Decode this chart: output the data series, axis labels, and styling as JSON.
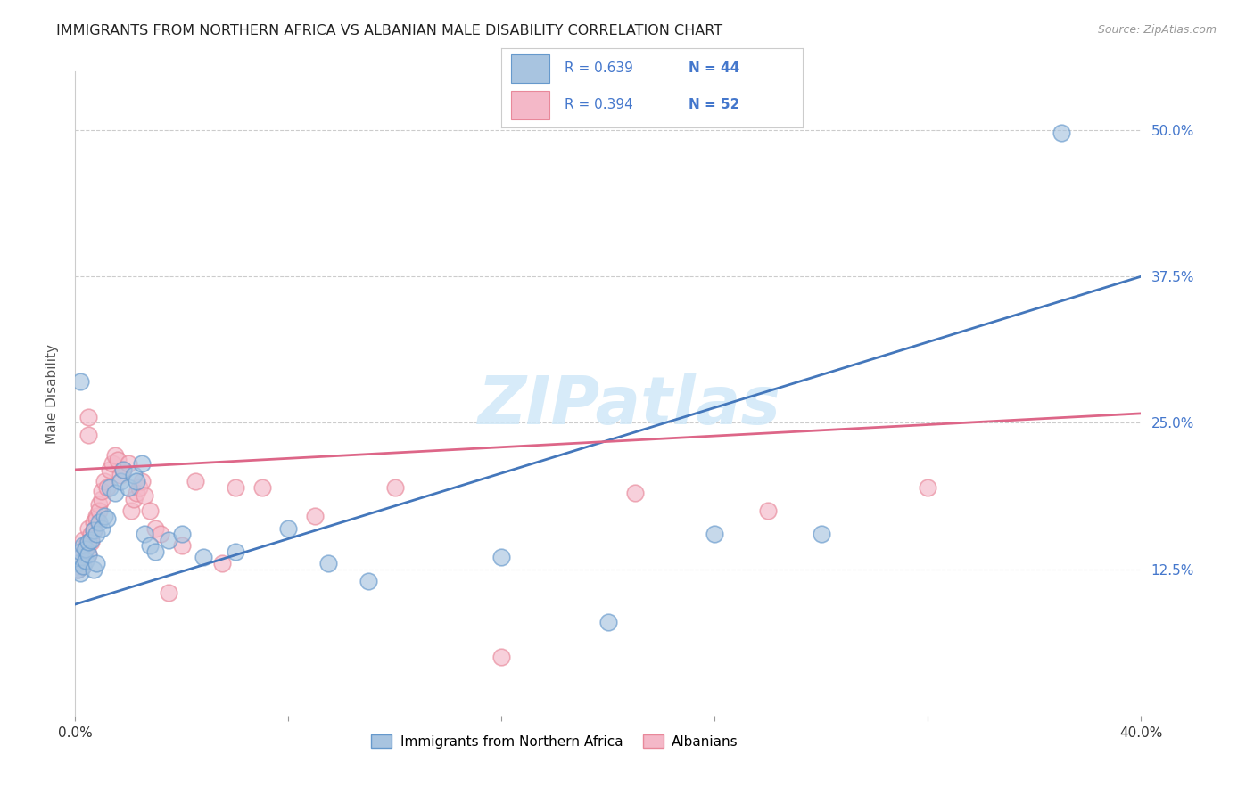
{
  "title": "IMMIGRANTS FROM NORTHERN AFRICA VS ALBANIAN MALE DISABILITY CORRELATION CHART",
  "source": "Source: ZipAtlas.com",
  "ylabel": "Male Disability",
  "xlim": [
    0.0,
    0.4
  ],
  "ylim": [
    0.0,
    0.55
  ],
  "ytick_positions": [
    0.125,
    0.25,
    0.375,
    0.5
  ],
  "ytick_labels": [
    "12.5%",
    "25.0%",
    "37.5%",
    "50.0%"
  ],
  "xtick_positions": [
    0.0,
    0.08,
    0.16,
    0.24,
    0.32,
    0.4
  ],
  "xtick_labels": [
    "0.0%",
    "",
    "",
    "",
    "",
    "40.0%"
  ],
  "blue_R": "0.639",
  "blue_N": "44",
  "pink_R": "0.394",
  "pink_N": "52",
  "blue_scatter_color": "#a8c4e0",
  "blue_edge_color": "#6699cc",
  "pink_scatter_color": "#f4b8c8",
  "pink_edge_color": "#e8889a",
  "blue_line_color": "#4477bb",
  "pink_line_color": "#dd6688",
  "legend_label_blue": "Immigrants from Northern Africa",
  "legend_label_pink": "Albanians",
  "text_color_blue": "#4477cc",
  "text_color_pink": "#dd5577",
  "watermark_text": "ZIPatlas",
  "blue_line_x0": 0.0,
  "blue_line_y0": 0.095,
  "blue_line_x1": 0.4,
  "blue_line_y1": 0.375,
  "pink_line_x0": 0.0,
  "pink_line_y0": 0.21,
  "pink_line_x1": 0.4,
  "pink_line_y1": 0.258,
  "blue_x": [
    0.001,
    0.001,
    0.002,
    0.002,
    0.002,
    0.003,
    0.003,
    0.004,
    0.004,
    0.005,
    0.005,
    0.006,
    0.007,
    0.007,
    0.008,
    0.008,
    0.009,
    0.01,
    0.011,
    0.012,
    0.013,
    0.015,
    0.017,
    0.018,
    0.02,
    0.022,
    0.023,
    0.025,
    0.026,
    0.028,
    0.03,
    0.035,
    0.04,
    0.048,
    0.06,
    0.08,
    0.095,
    0.11,
    0.16,
    0.2,
    0.24,
    0.28,
    0.37,
    0.002
  ],
  "blue_y": [
    0.13,
    0.125,
    0.135,
    0.122,
    0.14,
    0.128,
    0.145,
    0.132,
    0.142,
    0.138,
    0.148,
    0.15,
    0.158,
    0.125,
    0.155,
    0.13,
    0.165,
    0.16,
    0.17,
    0.168,
    0.195,
    0.19,
    0.2,
    0.21,
    0.195,
    0.205,
    0.2,
    0.215,
    0.155,
    0.145,
    0.14,
    0.15,
    0.155,
    0.135,
    0.14,
    0.16,
    0.13,
    0.115,
    0.135,
    0.08,
    0.155,
    0.155,
    0.498,
    0.285
  ],
  "pink_x": [
    0.001,
    0.001,
    0.002,
    0.002,
    0.003,
    0.003,
    0.004,
    0.004,
    0.005,
    0.005,
    0.006,
    0.006,
    0.007,
    0.007,
    0.008,
    0.008,
    0.009,
    0.009,
    0.01,
    0.01,
    0.011,
    0.012,
    0.013,
    0.014,
    0.015,
    0.016,
    0.017,
    0.018,
    0.02,
    0.021,
    0.022,
    0.023,
    0.024,
    0.025,
    0.026,
    0.028,
    0.03,
    0.032,
    0.035,
    0.04,
    0.045,
    0.055,
    0.06,
    0.07,
    0.09,
    0.12,
    0.16,
    0.21,
    0.26,
    0.32,
    0.005,
    0.005
  ],
  "pink_y": [
    0.13,
    0.125,
    0.14,
    0.135,
    0.15,
    0.128,
    0.142,
    0.145,
    0.16,
    0.138,
    0.155,
    0.148,
    0.165,
    0.158,
    0.17,
    0.168,
    0.18,
    0.175,
    0.185,
    0.192,
    0.2,
    0.195,
    0.21,
    0.215,
    0.222,
    0.218,
    0.205,
    0.21,
    0.215,
    0.175,
    0.185,
    0.19,
    0.195,
    0.2,
    0.188,
    0.175,
    0.16,
    0.155,
    0.105,
    0.145,
    0.2,
    0.13,
    0.195,
    0.195,
    0.17,
    0.195,
    0.05,
    0.19,
    0.175,
    0.195,
    0.24,
    0.255
  ]
}
